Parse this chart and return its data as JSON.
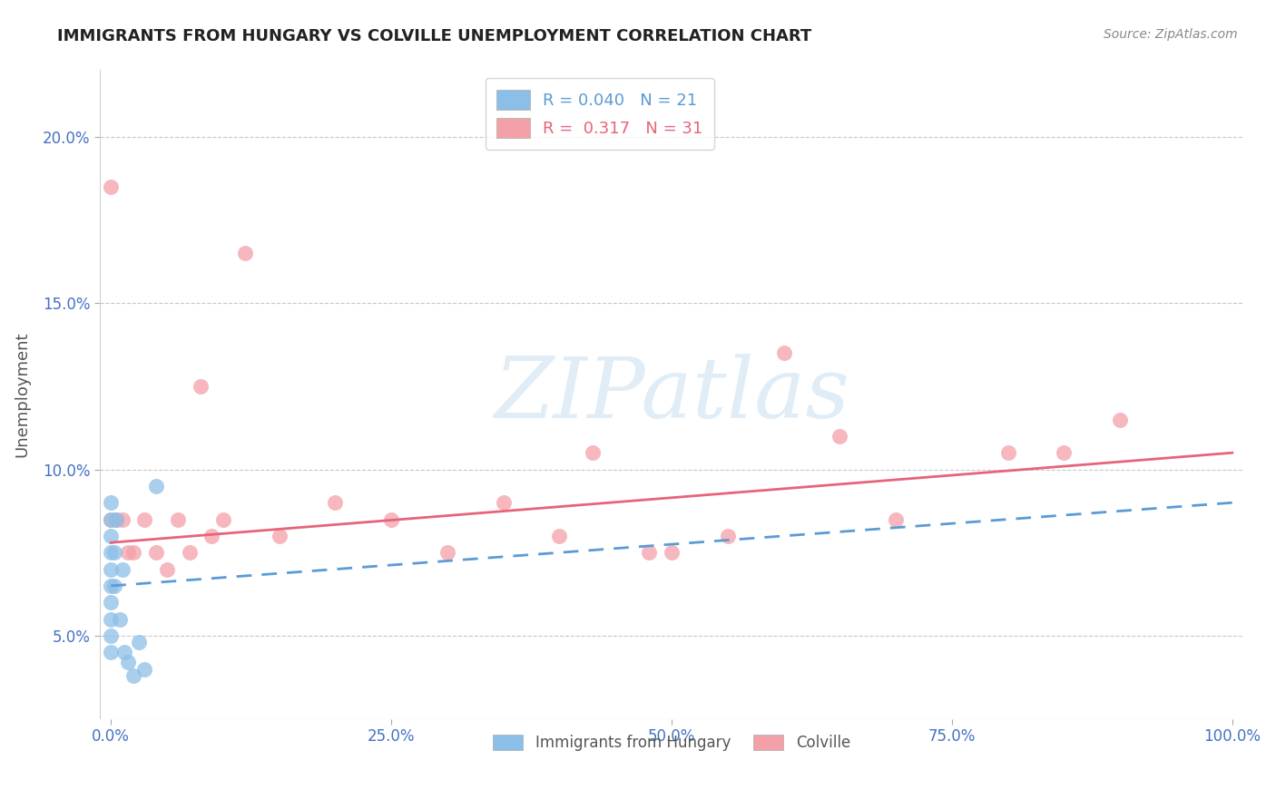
{
  "title": "IMMIGRANTS FROM HUNGARY VS COLVILLE UNEMPLOYMENT CORRELATION CHART",
  "source": "Source: ZipAtlas.com",
  "xlabel_blue": "Immigrants from Hungary",
  "xlabel_pink": "Colville",
  "ylabel": "Unemployment",
  "xlim": [
    -1.0,
    101.0
  ],
  "ylim": [
    2.5,
    22.0
  ],
  "yticks": [
    5.0,
    10.0,
    15.0,
    20.0
  ],
  "xticks": [
    0.0,
    25.0,
    50.0,
    75.0,
    100.0
  ],
  "blue_R": 0.04,
  "blue_N": 21,
  "pink_R": 0.317,
  "pink_N": 31,
  "blue_color": "#8cbfe8",
  "pink_color": "#f4a0a8",
  "blue_line_color": "#5b9bd5",
  "pink_line_color": "#e8637a",
  "blue_x": [
    0.0,
    0.0,
    0.0,
    0.0,
    0.0,
    0.0,
    0.0,
    0.0,
    0.0,
    0.0,
    0.3,
    0.3,
    0.5,
    0.8,
    1.0,
    1.2,
    1.5,
    2.0,
    2.5,
    3.0,
    4.0
  ],
  "blue_y": [
    9.0,
    8.5,
    8.0,
    7.5,
    7.0,
    6.5,
    6.0,
    5.5,
    5.0,
    4.5,
    6.5,
    7.5,
    8.5,
    5.5,
    7.0,
    4.5,
    4.2,
    3.8,
    4.8,
    4.0,
    9.5
  ],
  "pink_x": [
    0.0,
    0.0,
    0.5,
    1.0,
    1.5,
    2.0,
    3.0,
    4.0,
    5.0,
    6.0,
    7.0,
    8.0,
    9.0,
    10.0,
    12.0,
    15.0,
    20.0,
    25.0,
    30.0,
    35.0,
    40.0,
    43.0,
    48.0,
    50.0,
    55.0,
    60.0,
    65.0,
    70.0,
    80.0,
    85.0,
    90.0
  ],
  "pink_y": [
    18.5,
    8.5,
    8.5,
    8.5,
    7.5,
    7.5,
    8.5,
    7.5,
    7.0,
    8.5,
    7.5,
    12.5,
    8.0,
    8.5,
    16.5,
    8.0,
    9.0,
    8.5,
    7.5,
    9.0,
    8.0,
    10.5,
    7.5,
    7.5,
    8.0,
    13.5,
    11.0,
    8.5,
    10.5,
    10.5,
    11.5
  ],
  "blue_trend_x": [
    0.0,
    100.0
  ],
  "blue_trend_y": [
    6.5,
    9.0
  ],
  "pink_trend_x": [
    0.0,
    100.0
  ],
  "pink_trend_y": [
    7.8,
    10.5
  ],
  "background_color": "#ffffff",
  "grid_color": "#c8c8c8",
  "watermark_text": "ZIPatlas",
  "watermark_color": "#a8cce8",
  "watermark_alpha": 0.35
}
